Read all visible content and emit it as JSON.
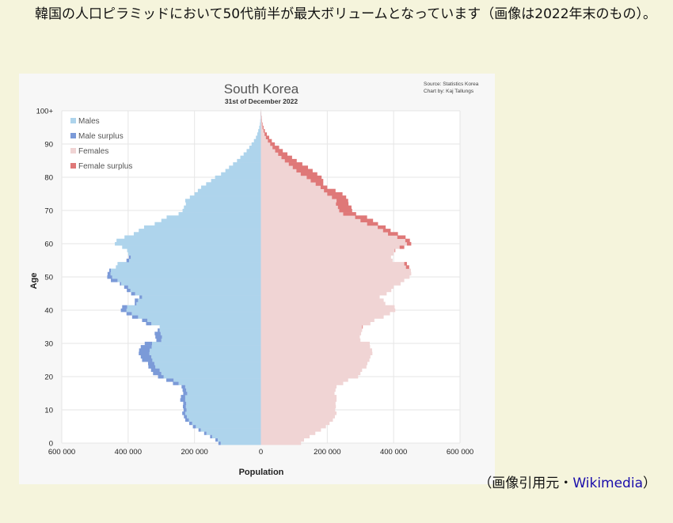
{
  "paragraph": {
    "text": "韓国の人口ピラミッドにおいて50代前半が最大ボリュームとなっています（画像は2022年末のもの）。"
  },
  "caption": {
    "prefix": "（画像引用元・",
    "link_text": "Wikimedia",
    "suffix": "）"
  },
  "chart_data": {
    "type": "population-pyramid",
    "title": "South Korea",
    "subtitle": "31st of December 2022",
    "source_lines": [
      "Source: Statistics Korea",
      "Chart by: Kaj Tallungs"
    ],
    "xlabel": "Population",
    "ylabel": "Age",
    "x_tick_labels": [
      "600 000",
      "400 000",
      "200 000",
      "0",
      "200 000",
      "400 000",
      "600 000"
    ],
    "x_tick_values": [
      -600000,
      -400000,
      -200000,
      0,
      200000,
      400000,
      600000
    ],
    "y_tick_labels": [
      "0",
      "10",
      "20",
      "30",
      "40",
      "50",
      "60",
      "70",
      "80",
      "90",
      "100+"
    ],
    "y_tick_values": [
      0,
      10,
      20,
      30,
      40,
      50,
      60,
      70,
      80,
      90,
      100
    ],
    "xlim": [
      -600000,
      600000
    ],
    "ylim": [
      0,
      100
    ],
    "grid": true,
    "legend_position": "top-left",
    "legend": [
      {
        "label": "Males",
        "color": "#aed4ec"
      },
      {
        "label": "Male surplus",
        "color": "#7b9ad8"
      },
      {
        "label": "Females",
        "color": "#f0d4d4"
      },
      {
        "label": "Female surplus",
        "color": "#df7878"
      }
    ],
    "colors": {
      "males": "#aed4ec",
      "male_surplus": "#7b9ad8",
      "females": "#f0d4d4",
      "female_surplus": "#df7878"
    },
    "age_anchors": [
      0,
      1,
      2,
      3,
      4,
      5,
      6,
      7,
      8,
      9,
      10,
      11,
      12,
      13,
      14,
      15,
      16,
      17,
      18,
      19,
      20,
      21,
      22,
      23,
      24,
      25,
      26,
      27,
      28,
      29,
      30,
      31,
      32,
      33,
      34,
      35,
      36,
      37,
      38,
      39,
      40,
      41,
      42,
      43,
      44,
      45,
      46,
      47,
      48,
      49,
      50,
      51,
      52,
      53,
      54,
      55,
      56,
      57,
      58,
      59,
      60,
      61,
      62,
      63,
      64,
      65,
      66,
      67,
      68,
      69,
      70,
      71,
      72,
      73,
      74,
      75,
      76,
      77,
      78,
      79,
      80,
      81,
      82,
      83,
      84,
      85,
      86,
      87,
      88,
      89,
      90,
      91,
      92,
      93,
      94,
      95,
      96,
      97,
      98,
      99,
      100
    ],
    "males_anchors": [
      128000,
      137000,
      153000,
      171000,
      188000,
      205000,
      216000,
      228000,
      232000,
      237000,
      233000,
      235000,
      234000,
      243000,
      241000,
      234000,
      236000,
      239000,
      265000,
      285000,
      310000,
      325000,
      331000,
      339000,
      340000,
      358000,
      362000,
      368000,
      367000,
      362000,
      350000,
      315000,
      318000,
      320000,
      311000,
      305000,
      346000,
      358000,
      388000,
      405000,
      422000,
      418000,
      380000,
      380000,
      366000,
      391000,
      404000,
      412000,
      425000,
      452000,
      463000,
      462000,
      457000,
      437000,
      432000,
      405000,
      398000,
      400000,
      403000,
      418000,
      440000,
      435000,
      411000,
      383000,
      368000,
      352000,
      320000,
      300000,
      284000,
      248000,
      236000,
      232000,
      226000,
      228000,
      214000,
      200000,
      190000,
      180000,
      165000,
      150000,
      138000,
      120000,
      107000,
      96000,
      84000,
      72000,
      62000,
      52000,
      43000,
      35000,
      28000,
      21000,
      15000,
      11000,
      8000,
      5000,
      3000,
      2000,
      1000,
      500,
      200
    ],
    "females_anchors": [
      121000,
      130000,
      147000,
      164000,
      181000,
      196000,
      207000,
      217000,
      223000,
      228000,
      224000,
      226000,
      225000,
      228000,
      228000,
      222000,
      225000,
      228000,
      248000,
      263000,
      293000,
      300000,
      305000,
      318000,
      321000,
      327000,
      330000,
      336000,
      335000,
      329000,
      328000,
      300000,
      298000,
      302000,
      305000,
      307000,
      330000,
      342000,
      370000,
      389000,
      405000,
      403000,
      375000,
      370000,
      358000,
      379000,
      393000,
      400000,
      421000,
      432000,
      448000,
      453000,
      452000,
      447000,
      440000,
      397000,
      392000,
      400000,
      405000,
      432000,
      453000,
      449000,
      436000,
      413000,
      391000,
      376000,
      353000,
      338000,
      320000,
      287000,
      275000,
      273000,
      264000,
      263000,
      257000,
      246000,
      225000,
      200000,
      188000,
      188000,
      183000,
      170000,
      156000,
      142000,
      125000,
      108000,
      94000,
      80000,
      66000,
      55000,
      42000,
      33000,
      25000,
      18000,
      12000,
      8000,
      5000,
      3000,
      2000,
      1000,
      400
    ]
  }
}
